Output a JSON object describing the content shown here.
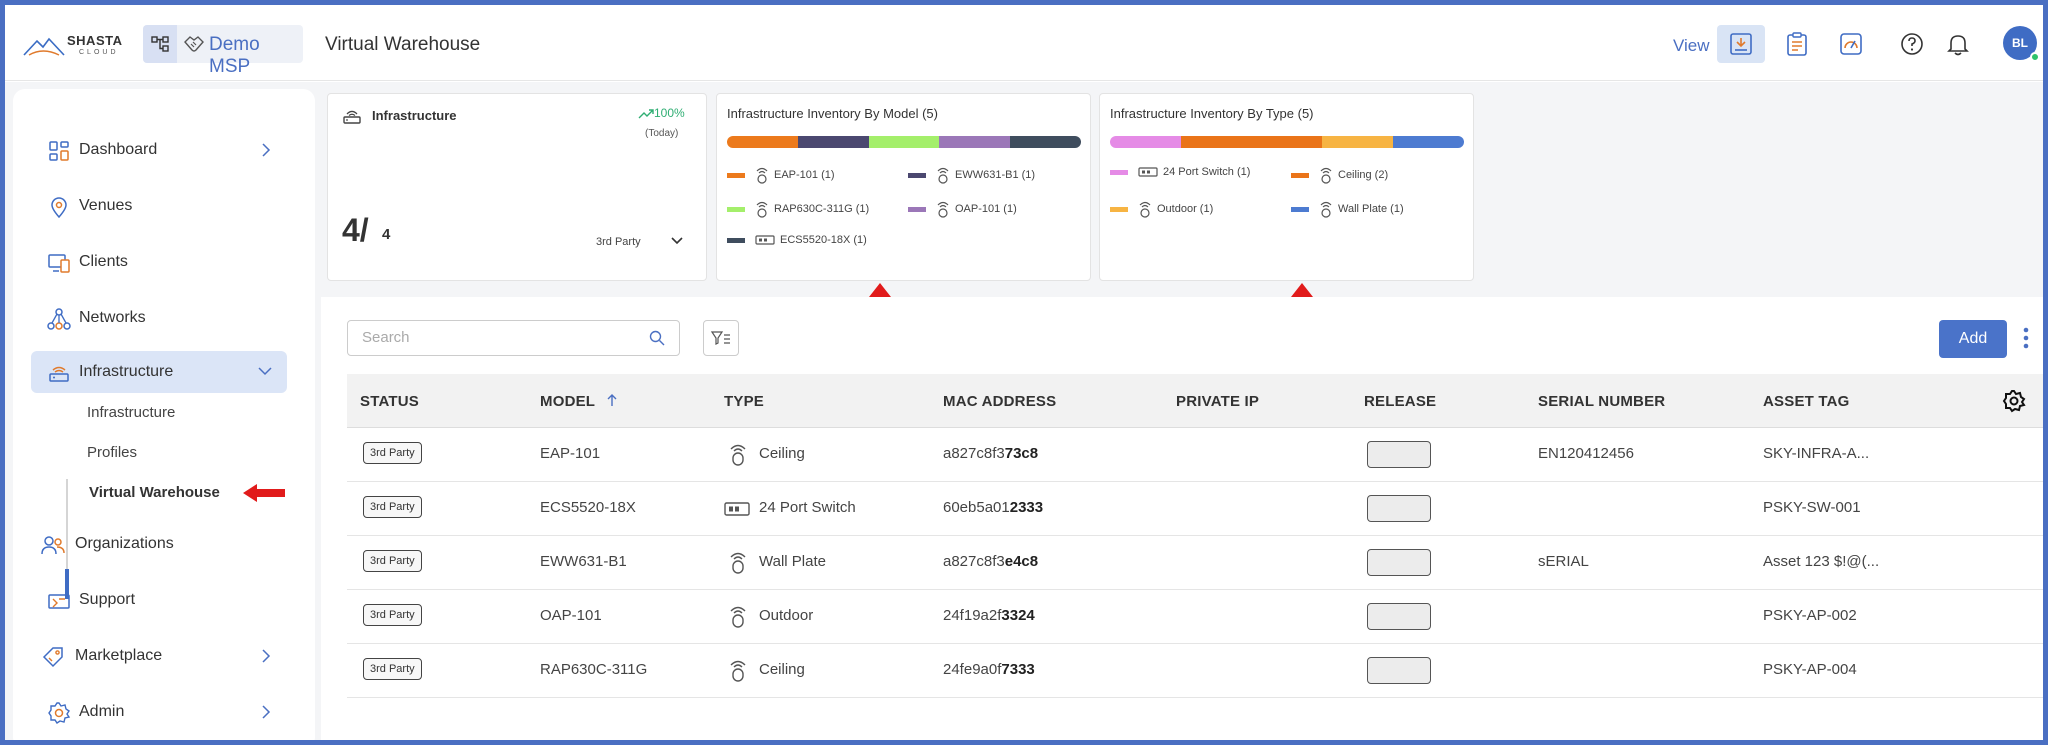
{
  "header": {
    "logo_name": "SHASTA",
    "logo_sub": "CLOUD",
    "org_name": "Demo MSP",
    "page_title": "Virtual Warehouse",
    "view_label": "View",
    "avatar_initials": "BL"
  },
  "sidebar": {
    "items": [
      {
        "label": "Dashboard",
        "icon": "dashboard-icon",
        "chevron": true
      },
      {
        "label": "Venues",
        "icon": "location-pin-icon",
        "chevron": false
      },
      {
        "label": "Clients",
        "icon": "clients-icon",
        "chevron": false
      },
      {
        "label": "Networks",
        "icon": "networks-icon",
        "chevron": false
      },
      {
        "label": "Infrastructure",
        "icon": "infrastructure-icon",
        "chevron": true,
        "expanded": true
      },
      {
        "label": "Organizations",
        "icon": "organizations-icon",
        "chevron": false
      },
      {
        "label": "Support",
        "icon": "support-icon",
        "chevron": false
      },
      {
        "label": "Marketplace",
        "icon": "marketplace-icon",
        "chevron": true
      },
      {
        "label": "Admin",
        "icon": "admin-gear-icon",
        "chevron": true
      }
    ],
    "sub_items": [
      "Infrastructure",
      "Profiles",
      "Virtual Warehouse"
    ],
    "active_sub": "Virtual Warehouse"
  },
  "cards": {
    "infra": {
      "title": "Infrastructure",
      "trend": "100%",
      "period": "(Today)",
      "count": "4/",
      "total": "4",
      "filter": "3rd Party"
    },
    "by_model": {
      "title": "Infrastructure Inventory By Model (5)",
      "segments": [
        {
          "label": "EAP-101 (1)",
          "color": "#ec7a1c",
          "value": 1,
          "icon": "ap-icon"
        },
        {
          "label": "EWW631-B1 (1)",
          "color": "#4b4870",
          "value": 1,
          "icon": "ap-icon"
        },
        {
          "label": "RAP630C-311G (1)",
          "color": "#a4ef6b",
          "value": 1,
          "icon": "ap-icon"
        },
        {
          "label": "OAP-101 (1)",
          "color": "#9b77b8",
          "value": 1,
          "icon": "ap-icon"
        },
        {
          "label": "ECS5520-18X (1)",
          "color": "#3f4d5e",
          "value": 1,
          "icon": "switch-icon"
        }
      ]
    },
    "by_type": {
      "title": "Infrastructure Inventory By Type (5)",
      "segments": [
        {
          "label": "24 Port Switch (1)",
          "color": "#e58be6",
          "value": 1,
          "icon": "switch-icon"
        },
        {
          "label": "Ceiling (2)",
          "color": "#ea7419",
          "value": 2,
          "icon": "ap-icon"
        },
        {
          "label": "Outdoor (1)",
          "color": "#f7b443",
          "value": 1,
          "icon": "ap-icon"
        },
        {
          "label": "Wall Plate (1)",
          "color": "#4d7bd1",
          "value": 1,
          "icon": "ap-icon"
        }
      ]
    }
  },
  "toolbar": {
    "search_placeholder": "Search",
    "add_label": "Add"
  },
  "table": {
    "columns": [
      "STATUS",
      "MODEL",
      "TYPE",
      "MAC ADDRESS",
      "PRIVATE IP",
      "RELEASE",
      "SERIAL NUMBER",
      "ASSET TAG"
    ],
    "sort_column": "MODEL",
    "sort_dir": "ascending",
    "rows": [
      {
        "status": "3rd Party",
        "model": "EAP-101",
        "type": "Ceiling",
        "type_icon": "ap-icon",
        "mac_prefix": "a827c8f3",
        "mac_suffix": "73c8",
        "private_ip": "",
        "serial": "EN120412456",
        "asset": "SKY-INFRA-A..."
      },
      {
        "status": "3rd Party",
        "model": "ECS5520-18X",
        "type": "24 Port Switch",
        "type_icon": "switch-icon",
        "mac_prefix": "60eb5a01",
        "mac_suffix": "2333",
        "private_ip": "",
        "serial": "",
        "asset": "PSKY-SW-001"
      },
      {
        "status": "3rd Party",
        "model": "EWW631-B1",
        "type": "Wall Plate",
        "type_icon": "ap-icon",
        "mac_prefix": "a827c8f3",
        "mac_suffix": "e4c8",
        "private_ip": "",
        "serial": "sERIAL",
        "asset": "Asset 123 $!@(..."
      },
      {
        "status": "3rd Party",
        "model": "OAP-101",
        "type": "Outdoor",
        "type_icon": "ap-icon",
        "mac_prefix": "24f19a2f",
        "mac_suffix": "3324",
        "private_ip": "",
        "serial": "",
        "asset": "PSKY-AP-002"
      },
      {
        "status": "3rd Party",
        "model": "RAP630C-311G",
        "type": "Ceiling",
        "type_icon": "ap-icon",
        "mac_prefix": "24fe9a0f",
        "mac_suffix": "7333",
        "private_ip": "",
        "serial": "",
        "asset": "PSKY-AP-004"
      }
    ]
  }
}
